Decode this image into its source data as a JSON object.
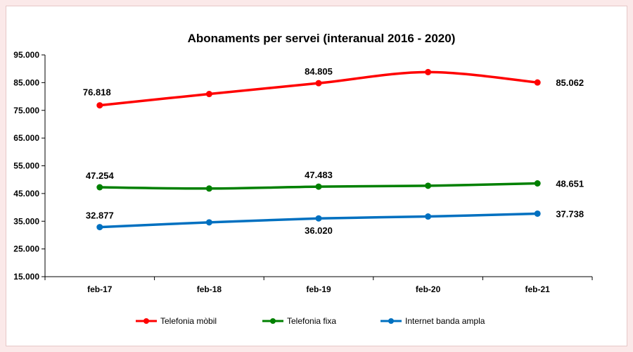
{
  "chart_data": {
    "type": "line",
    "title": "Abonaments per servei (interanual 2016 - 2020)",
    "xlabel": "",
    "ylabel": "",
    "categories": [
      "feb-17",
      "feb-18",
      "feb-19",
      "feb-20",
      "feb-21"
    ],
    "ylim": [
      15000,
      95000
    ],
    "yticks": [
      95000,
      85000,
      75000,
      65000,
      55000,
      45000,
      35000,
      25000,
      15000
    ],
    "ytick_labels": [
      "95.000",
      "85.000",
      "75.000",
      "65.000",
      "55.000",
      "45.000",
      "35.000",
      "25.000",
      "15.000"
    ],
    "grid": false,
    "legend_position": "bottom",
    "series": [
      {
        "name": "Telefonia mòbil",
        "color": "#ff0000",
        "values": [
          76818,
          80900,
          84805,
          88800,
          85062
        ],
        "labels": [
          "76.818",
          "",
          "84.805",
          "",
          "85.062"
        ]
      },
      {
        "name": "Telefonia fixa",
        "color": "#008000",
        "values": [
          47254,
          46800,
          47483,
          47800,
          48651
        ],
        "labels": [
          "47.254",
          "",
          "47.483",
          "",
          "48.651"
        ]
      },
      {
        "name": "Internet banda ampla",
        "color": "#0070c0",
        "values": [
          32877,
          34600,
          36020,
          36700,
          37738
        ],
        "labels": [
          "32.877",
          "",
          "36.020",
          "",
          "37.738"
        ]
      }
    ]
  }
}
